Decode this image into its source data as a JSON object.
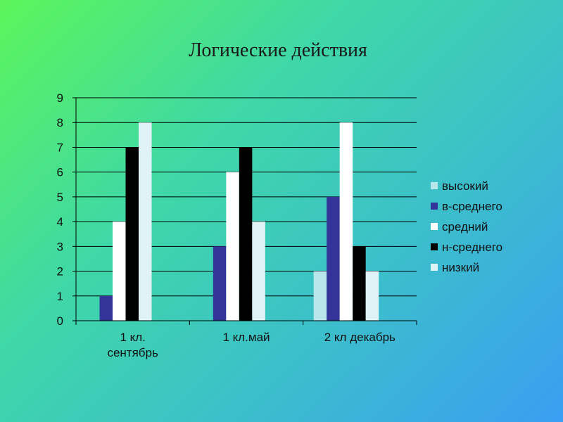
{
  "chart_data": {
    "type": "bar",
    "title": "Логические действия",
    "categories": [
      [
        "1 кл.",
        "сентябрь"
      ],
      [
        "1 кл.май"
      ],
      [
        "2 кл декабрь"
      ]
    ],
    "ylim": [
      0,
      9
    ],
    "yticks": [
      "0",
      "1",
      "2",
      "3",
      "4",
      "5",
      "6",
      "7",
      "8",
      "9"
    ],
    "grid": true,
    "legend_position": "right",
    "series": [
      {
        "name": "высокий",
        "color": "#b8e6ea",
        "values": [
          0,
          0,
          2
        ]
      },
      {
        "name": "в-среднего",
        "color": "#33339a",
        "values": [
          1,
          3,
          5
        ]
      },
      {
        "name": "средний",
        "color": "#ffffff",
        "values": [
          4,
          6,
          8
        ]
      },
      {
        "name": "н-среднего",
        "color": "#000000",
        "values": [
          7,
          7,
          3
        ]
      },
      {
        "name": "низкий",
        "color": "#dff2f5",
        "values": [
          8,
          4,
          2
        ]
      }
    ]
  }
}
